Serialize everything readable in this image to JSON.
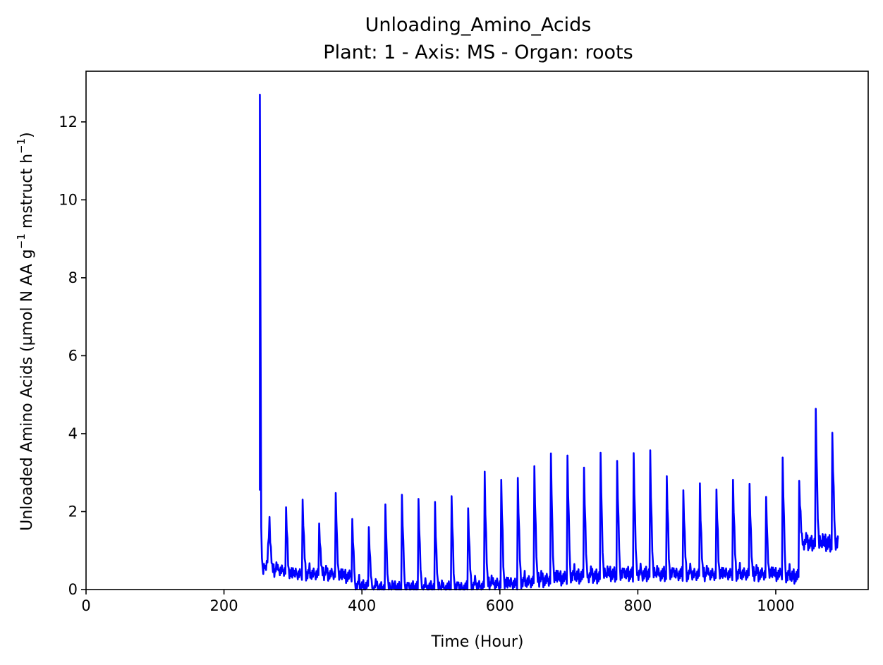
{
  "chart_data": {
    "type": "line",
    "title": "Unloading_Amino_Acids",
    "subtitle": "Plant: 1 - Axis: MS - Organ: roots",
    "xlabel": "Time (Hour)",
    "ylabel_main": "Unloaded Amino Acids (µmol N AA g",
    "ylabel_sup1": "−1",
    "ylabel_mid": " mstruct h",
    "ylabel_sup2": "−1",
    "ylabel_end": ")",
    "xlim": [
      0,
      1134
    ],
    "ylim": [
      0,
      13.3
    ],
    "xticks": [
      0,
      200,
      400,
      600,
      800,
      1000
    ],
    "xtick_labels": [
      "0",
      "200",
      "400",
      "600",
      "800",
      "1000"
    ],
    "yticks": [
      0,
      2,
      4,
      6,
      8,
      10,
      12
    ],
    "ytick_labels": [
      "0",
      "2",
      "4",
      "6",
      "8",
      "10",
      "12"
    ],
    "grid": false,
    "series_color": "#0000ff",
    "series": [
      {
        "x_start": 252,
        "x_end": 1090,
        "initial_spike": {
          "peak_x": 252,
          "peak_y": 12.7,
          "settle_x": 257,
          "settle_y": 0.4
        },
        "daily_period_hours": 24,
        "daily_peaks": [
          {
            "x": 266,
            "base": 0.5,
            "peak": 1.7
          },
          {
            "x": 290,
            "base": 0.4,
            "peak": 2.0
          },
          {
            "x": 314,
            "base": 0.4,
            "peak": 2.25
          },
          {
            "x": 338,
            "base": 0.4,
            "peak": 1.7
          },
          {
            "x": 362,
            "base": 0.35,
            "peak": 2.35
          },
          {
            "x": 386,
            "base": 0.1,
            "peak": 1.75
          },
          {
            "x": 410,
            "base": 0.05,
            "peak": 1.6
          },
          {
            "x": 434,
            "base": 0.05,
            "peak": 2.05
          },
          {
            "x": 458,
            "base": 0.05,
            "peak": 2.35
          },
          {
            "x": 482,
            "base": 0.05,
            "peak": 2.3
          },
          {
            "x": 506,
            "base": 0.05,
            "peak": 2.1
          },
          {
            "x": 530,
            "base": 0.05,
            "peak": 2.3
          },
          {
            "x": 554,
            "base": 0.1,
            "peak": 2.05
          },
          {
            "x": 578,
            "base": 0.15,
            "peak": 2.85
          },
          {
            "x": 602,
            "base": 0.15,
            "peak": 2.7
          },
          {
            "x": 626,
            "base": 0.2,
            "peak": 2.8
          },
          {
            "x": 650,
            "base": 0.25,
            "peak": 3.15
          },
          {
            "x": 674,
            "base": 0.3,
            "peak": 3.35
          },
          {
            "x": 698,
            "base": 0.35,
            "peak": 3.35
          },
          {
            "x": 722,
            "base": 0.35,
            "peak": 3.1
          },
          {
            "x": 746,
            "base": 0.4,
            "peak": 3.35
          },
          {
            "x": 770,
            "base": 0.4,
            "peak": 3.2
          },
          {
            "x": 794,
            "base": 0.4,
            "peak": 3.45
          },
          {
            "x": 818,
            "base": 0.4,
            "peak": 3.4
          },
          {
            "x": 842,
            "base": 0.4,
            "peak": 2.8
          },
          {
            "x": 866,
            "base": 0.4,
            "peak": 2.5
          },
          {
            "x": 890,
            "base": 0.4,
            "peak": 2.55
          },
          {
            "x": 914,
            "base": 0.4,
            "peak": 2.45
          },
          {
            "x": 938,
            "base": 0.4,
            "peak": 2.75
          },
          {
            "x": 962,
            "base": 0.4,
            "peak": 2.7
          },
          {
            "x": 986,
            "base": 0.4,
            "peak": 2.25
          },
          {
            "x": 1010,
            "base": 0.35,
            "peak": 3.3
          },
          {
            "x": 1034,
            "base": 1.2,
            "peak": 2.75
          },
          {
            "x": 1058,
            "base": 1.2,
            "peak": 4.45
          },
          {
            "x": 1082,
            "base": 1.2,
            "peak": 3.9
          }
        ],
        "end_value": 1.3
      }
    ]
  }
}
